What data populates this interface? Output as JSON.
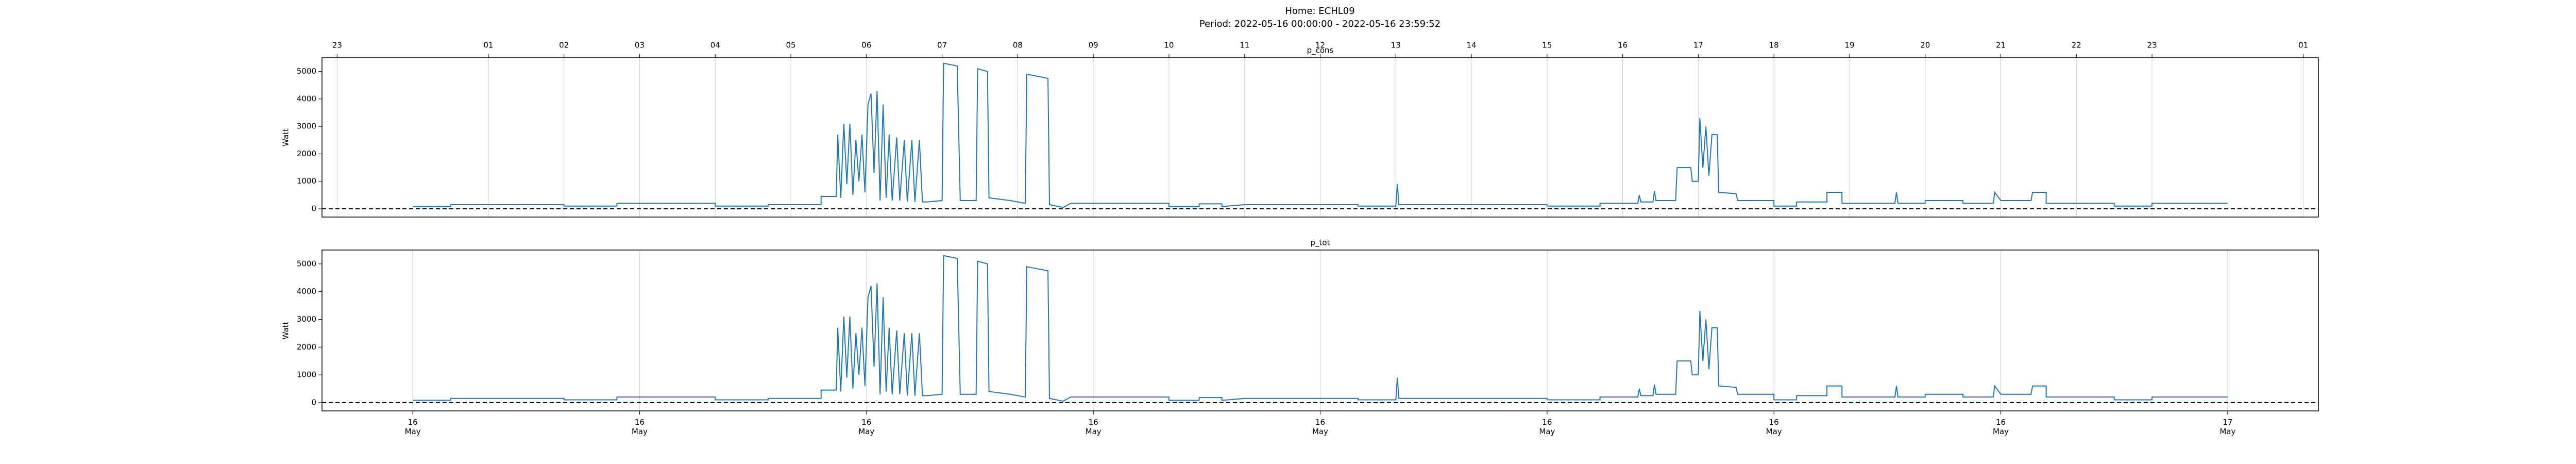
{
  "title": "Home: ECHL09",
  "subtitle": "Period: 2022-05-16 00:00:00 - 2022-05-16 23:59:52",
  "chart_data": [
    {
      "type": "line",
      "title": "p_cons",
      "ylabel": "Watt",
      "xlim": [
        -1.2,
        25.2
      ],
      "ylim": [
        -300,
        5500
      ],
      "yticks": [
        0,
        1000,
        2000,
        3000,
        4000,
        5000
      ],
      "x2ticks": [
        {
          "value": -1,
          "label": "23"
        },
        {
          "value": 1,
          "label": "01"
        },
        {
          "value": 2,
          "label": "02"
        },
        {
          "value": 3,
          "label": "03"
        },
        {
          "value": 4,
          "label": "04"
        },
        {
          "value": 5,
          "label": "05"
        },
        {
          "value": 6,
          "label": "06"
        },
        {
          "value": 7,
          "label": "07"
        },
        {
          "value": 8,
          "label": "08"
        },
        {
          "value": 9,
          "label": "09"
        },
        10,
        11,
        12,
        13,
        14,
        15,
        16,
        17,
        18,
        19,
        20,
        21,
        22,
        23,
        {
          "value": 25,
          "label": "01"
        }
      ],
      "grid": true,
      "hline": 0,
      "x": [
        0,
        0.5,
        0.5,
        2.0,
        2.0,
        2.7,
        2.7,
        4.0,
        4.0,
        4.7,
        4.7,
        5.4,
        5.4,
        5.6,
        5.62,
        5.66,
        5.7,
        5.74,
        5.78,
        5.82,
        5.86,
        5.9,
        5.94,
        5.98,
        6.02,
        6.06,
        6.1,
        6.14,
        6.18,
        6.22,
        6.26,
        6.3,
        6.34,
        6.4,
        6.44,
        6.5,
        6.54,
        6.6,
        6.64,
        6.7,
        6.74,
        6.8,
        7.0,
        7.02,
        7.2,
        7.24,
        7.45,
        7.47,
        7.6,
        7.62,
        7.9,
        8.1,
        8.12,
        8.4,
        8.42,
        8.6,
        8.7,
        10.0,
        10.0,
        10.4,
        10.4,
        10.7,
        10.7,
        11.0,
        12.5,
        12.5,
        13.0,
        13.02,
        13.04,
        15.0,
        15.0,
        15.7,
        15.7,
        16.2,
        16.22,
        16.24,
        16.4,
        16.42,
        16.44,
        16.7,
        16.72,
        16.9,
        16.92,
        17.0,
        17.02,
        17.06,
        17.1,
        17.14,
        17.18,
        17.25,
        17.27,
        17.5,
        17.52,
        18.0,
        18.0,
        18.3,
        18.3,
        18.7,
        18.7,
        18.9,
        18.9,
        19.6,
        19.62,
        19.64,
        20.0,
        20.0,
        20.5,
        20.5,
        20.9,
        20.92,
        21.0,
        21.4,
        21.42,
        21.6,
        21.6,
        22.5,
        22.5,
        23.0,
        23.0,
        24.0
      ],
      "series": [
        {
          "color": "#1f77b4",
          "values": [
            80,
            80,
            150,
            150,
            100,
            100,
            200,
            200,
            100,
            100,
            150,
            150,
            450,
            450,
            2700,
            400,
            3100,
            900,
            3100,
            500,
            2500,
            1000,
            2700,
            600,
            3800,
            4200,
            1300,
            4300,
            300,
            3800,
            400,
            2700,
            300,
            2600,
            300,
            2500,
            250,
            2500,
            250,
            2500,
            250,
            250,
            300,
            5300,
            5200,
            300,
            300,
            5100,
            5000,
            400,
            300,
            200,
            4900,
            4750,
            150,
            50,
            200,
            200,
            80,
            80,
            180,
            180,
            80,
            150,
            150,
            100,
            100,
            900,
            150,
            150,
            100,
            100,
            200,
            200,
            500,
            250,
            250,
            650,
            300,
            300,
            1500,
            1500,
            1000,
            1000,
            3300,
            1500,
            3000,
            1200,
            2700,
            2700,
            600,
            550,
            300,
            300,
            100,
            100,
            250,
            250,
            600,
            600,
            200,
            200,
            600,
            200,
            200,
            300,
            300,
            200,
            200,
            600,
            300,
            300,
            600,
            600,
            200,
            200,
            100,
            100,
            200,
            200
          ]
        }
      ]
    },
    {
      "type": "line",
      "title": "p_tot",
      "ylabel": "Watt",
      "xlim": [
        -1.2,
        25.2
      ],
      "ylim": [
        -300,
        5500
      ],
      "yticks": [
        0,
        1000,
        2000,
        3000,
        4000,
        5000
      ],
      "xticks": [
        {
          "value": 0,
          "label": "16 May"
        },
        {
          "value": 3,
          "label": "16 May"
        },
        {
          "value": 6,
          "label": "16 May"
        },
        {
          "value": 9,
          "label": "16 May"
        },
        {
          "value": 12,
          "label": "16 May"
        },
        {
          "value": 15,
          "label": "16 May"
        },
        {
          "value": 18,
          "label": "16 May"
        },
        {
          "value": 21,
          "label": "16 May"
        },
        {
          "value": 24,
          "label": "17 May"
        }
      ],
      "grid": true,
      "hline": 0,
      "x": [
        0,
        0.5,
        0.5,
        2.0,
        2.0,
        2.7,
        2.7,
        4.0,
        4.0,
        4.7,
        4.7,
        5.4,
        5.4,
        5.6,
        5.62,
        5.66,
        5.7,
        5.74,
        5.78,
        5.82,
        5.86,
        5.9,
        5.94,
        5.98,
        6.02,
        6.06,
        6.1,
        6.14,
        6.18,
        6.22,
        6.26,
        6.3,
        6.34,
        6.4,
        6.44,
        6.5,
        6.54,
        6.6,
        6.64,
        6.7,
        6.74,
        6.8,
        7.0,
        7.02,
        7.2,
        7.24,
        7.45,
        7.47,
        7.6,
        7.62,
        7.9,
        8.1,
        8.12,
        8.4,
        8.42,
        8.6,
        8.7,
        10.0,
        10.0,
        10.4,
        10.4,
        10.7,
        10.7,
        11.0,
        12.5,
        12.5,
        13.0,
        13.02,
        13.04,
        15.0,
        15.0,
        15.7,
        15.7,
        16.2,
        16.22,
        16.24,
        16.4,
        16.42,
        16.44,
        16.7,
        16.72,
        16.9,
        16.92,
        17.0,
        17.02,
        17.06,
        17.1,
        17.14,
        17.18,
        17.25,
        17.27,
        17.5,
        17.52,
        18.0,
        18.0,
        18.3,
        18.3,
        18.7,
        18.7,
        18.9,
        18.9,
        19.6,
        19.62,
        19.64,
        20.0,
        20.0,
        20.5,
        20.5,
        20.9,
        20.92,
        21.0,
        21.4,
        21.42,
        21.6,
        21.6,
        22.5,
        22.5,
        23.0,
        23.0,
        24.0
      ],
      "series": [
        {
          "color": "#1f77b4",
          "values": [
            80,
            80,
            150,
            150,
            100,
            100,
            200,
            200,
            100,
            100,
            150,
            150,
            450,
            450,
            2700,
            400,
            3100,
            900,
            3100,
            500,
            2500,
            1000,
            2700,
            600,
            3800,
            4200,
            1300,
            4300,
            300,
            3800,
            400,
            2700,
            300,
            2600,
            300,
            2500,
            250,
            2500,
            250,
            2500,
            250,
            250,
            300,
            5300,
            5200,
            300,
            300,
            5100,
            5000,
            400,
            300,
            200,
            4900,
            4750,
            150,
            50,
            200,
            200,
            80,
            80,
            180,
            180,
            80,
            150,
            150,
            100,
            100,
            900,
            150,
            150,
            100,
            100,
            200,
            200,
            500,
            250,
            250,
            650,
            300,
            300,
            1500,
            1500,
            1000,
            1000,
            3300,
            1500,
            3000,
            1200,
            2700,
            2700,
            600,
            550,
            300,
            300,
            100,
            100,
            250,
            250,
            600,
            600,
            200,
            200,
            600,
            200,
            200,
            300,
            300,
            200,
            200,
            600,
            300,
            300,
            600,
            600,
            200,
            200,
            100,
            100,
            200,
            200
          ]
        }
      ]
    }
  ]
}
